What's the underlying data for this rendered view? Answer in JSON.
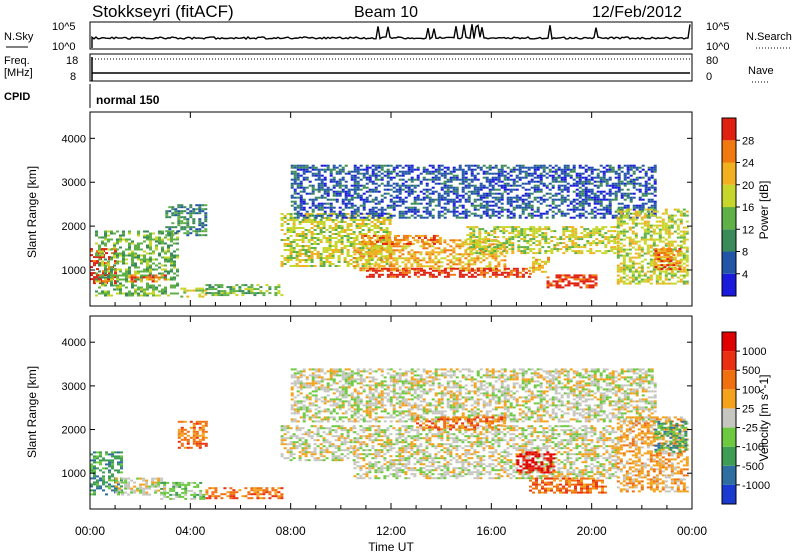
{
  "header": {
    "title": "Stokkseyri (fitACF)",
    "beam": "Beam 10",
    "date": "12/Feb/2012"
  },
  "strips": {
    "nsky": {
      "label": "N.Sky",
      "right_label": "N.Search",
      "left_ticks": [
        "10^5",
        "10^0"
      ],
      "right_ticks": [
        "10^5",
        "10^0"
      ]
    },
    "freq": {
      "label": "Freq.",
      "unit": "[MHz]",
      "right_label": "Nave",
      "left_ticks": [
        "18",
        "8"
      ],
      "right_ticks": [
        "80",
        "0"
      ]
    },
    "cpid": {
      "label": "CPID",
      "value": "normal 150"
    }
  },
  "chart_data": [
    {
      "type": "heatmap",
      "name": "power-panel",
      "xlabel": "",
      "ylabel": "Slant Range [km]",
      "xlim": [
        0,
        24
      ],
      "ylim": [
        180,
        4600
      ],
      "yticks": [
        "1000",
        "2000",
        "3000",
        "4000"
      ],
      "colorbar": {
        "label": "Power [dB]",
        "ticks": [
          "4",
          "8",
          "12",
          "16",
          "20",
          "24",
          "28"
        ],
        "colors": [
          "#1a1adc",
          "#2255a8",
          "#3a8a5a",
          "#5fb046",
          "#c6d62a",
          "#f0b020",
          "#f07a10",
          "#e02010"
        ]
      },
      "regions": [
        {
          "t": [
            0.0,
            1.0
          ],
          "r": [
            700,
            1500
          ],
          "level": 7
        },
        {
          "t": [
            0.2,
            3.5
          ],
          "r": [
            400,
            1900
          ],
          "level": 3
        },
        {
          "t": [
            1.5,
            3.0
          ],
          "r": [
            750,
            900
          ],
          "level": 6
        },
        {
          "t": [
            3.0,
            4.6
          ],
          "r": [
            1800,
            2500
          ],
          "level": 2
        },
        {
          "t": [
            3.6,
            4.6
          ],
          "r": [
            400,
            600
          ],
          "level": 4
        },
        {
          "t": [
            4.6,
            7.6
          ],
          "r": [
            450,
            680
          ],
          "level": 3
        },
        {
          "t": [
            7.6,
            12.0
          ],
          "r": [
            1100,
            2300
          ],
          "level": 4
        },
        {
          "t": [
            8.0,
            22.5
          ],
          "r": [
            2200,
            3400
          ],
          "level": 1
        },
        {
          "t": [
            10.5,
            16.5
          ],
          "r": [
            1000,
            1700
          ],
          "level": 5
        },
        {
          "t": [
            10.8,
            14.0
          ],
          "r": [
            1600,
            1800
          ],
          "level": 6
        },
        {
          "t": [
            11.0,
            17.5
          ],
          "r": [
            850,
            1050
          ],
          "level": 7
        },
        {
          "t": [
            15.0,
            21.0
          ],
          "r": [
            1400,
            2000
          ],
          "level": 4
        },
        {
          "t": [
            17.5,
            18.3
          ],
          "r": [
            900,
            1300
          ],
          "level": 5
        },
        {
          "t": [
            18.2,
            20.2
          ],
          "r": [
            600,
            900
          ],
          "level": 7
        },
        {
          "t": [
            21.0,
            23.8
          ],
          "r": [
            700,
            2400
          ],
          "level": 4
        },
        {
          "t": [
            22.5,
            23.5
          ],
          "r": [
            1000,
            1500
          ],
          "level": 6
        }
      ]
    },
    {
      "type": "heatmap",
      "name": "velocity-panel",
      "xlabel": "Time UT",
      "ylabel": "Slant Range [km]",
      "xlim": [
        0,
        24
      ],
      "ylim": [
        180,
        4600
      ],
      "xticks": [
        "00:00",
        "04:00",
        "08:00",
        "12:00",
        "16:00",
        "20:00",
        "00:00"
      ],
      "yticks": [
        "1000",
        "2000",
        "3000",
        "4000"
      ],
      "colorbar": {
        "label": "Velocity [m s^-1]",
        "ticks": [
          "1000",
          "500",
          "100",
          "25",
          "-25",
          "-100",
          "-500",
          "-1000"
        ],
        "colors": [
          "#1a3ad0",
          "#2e6ea0",
          "#3e9c55",
          "#6cc940",
          "#c6c6c0",
          "#f4a21c",
          "#f07010",
          "#ea3010",
          "#e00000"
        ]
      },
      "regions": [
        {
          "t": [
            0.0,
            1.2
          ],
          "r": [
            500,
            1500
          ],
          "level": 2
        },
        {
          "t": [
            1.0,
            3.0
          ],
          "r": [
            500,
            900
          ],
          "level": 4
        },
        {
          "t": [
            2.8,
            4.5
          ],
          "r": [
            400,
            800
          ],
          "level": 3
        },
        {
          "t": [
            3.5,
            4.6
          ],
          "r": [
            1600,
            2200
          ],
          "level": 6
        },
        {
          "t": [
            4.6,
            7.6
          ],
          "r": [
            450,
            680
          ],
          "level": 6
        },
        {
          "t": [
            7.6,
            10.5
          ],
          "r": [
            1300,
            2100
          ],
          "level": 4
        },
        {
          "t": [
            8.0,
            22.5
          ],
          "r": [
            2200,
            3400
          ],
          "level": 4
        },
        {
          "t": [
            10.5,
            21.0
          ],
          "r": [
            900,
            2100
          ],
          "level": 4
        },
        {
          "t": [
            13.0,
            16.5
          ],
          "r": [
            2000,
            2300
          ],
          "level": 6
        },
        {
          "t": [
            17.0,
            18.5
          ],
          "r": [
            1000,
            1500
          ],
          "level": 8
        },
        {
          "t": [
            17.5,
            20.5
          ],
          "r": [
            550,
            900
          ],
          "level": 6
        },
        {
          "t": [
            21.0,
            23.8
          ],
          "r": [
            600,
            2300
          ],
          "level": 5
        },
        {
          "t": [
            22.5,
            23.8
          ],
          "r": [
            1500,
            2200
          ],
          "level": 2
        }
      ]
    }
  ]
}
